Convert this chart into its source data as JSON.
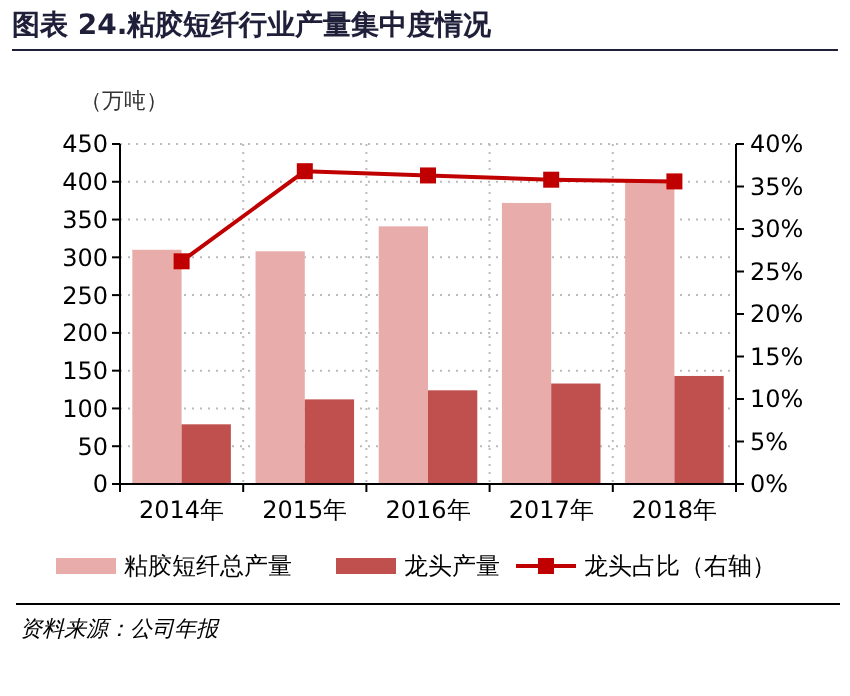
{
  "chart_data": {
    "type": "bar",
    "title": "图表 24.粘胶短纤行业产量集中度情况",
    "ylabel": "（万吨）",
    "categories": [
      "2014年",
      "2015年",
      "2016年",
      "2017年",
      "2018年"
    ],
    "series": [
      {
        "name": "粘胶短纤总产量",
        "color": "#e8adab",
        "values": [
          310,
          308,
          341,
          372,
          402
        ]
      },
      {
        "name": "龙头产量",
        "color": "#c0504d",
        "values": [
          79,
          112,
          124,
          133,
          143
        ]
      },
      {
        "name": "龙头占比（右轴）",
        "type": "line",
        "axis": "y2",
        "color": "#c00000",
        "marker": "square",
        "values": [
          26.2,
          36.8,
          36.3,
          35.8,
          35.6
        ]
      }
    ],
    "ylim": [
      0,
      450
    ],
    "yticks": [
      0,
      50,
      100,
      150,
      200,
      250,
      300,
      350,
      400,
      450
    ],
    "y2lim": [
      0,
      40
    ],
    "y2ticks": [
      {
        "value": 0,
        "label": "0%"
      },
      {
        "value": 5,
        "label": "5%"
      },
      {
        "value": 10,
        "label": "10%"
      },
      {
        "value": 15,
        "label": "15%"
      },
      {
        "value": 20,
        "label": "20%"
      },
      {
        "value": 25,
        "label": "25%"
      },
      {
        "value": 30,
        "label": "30%"
      },
      {
        "value": 35,
        "label": "35%"
      },
      {
        "value": 40,
        "label": "40%"
      }
    ],
    "grid": true,
    "legend": "bottom",
    "annotations": [
      "资料来源：公司年报"
    ]
  }
}
